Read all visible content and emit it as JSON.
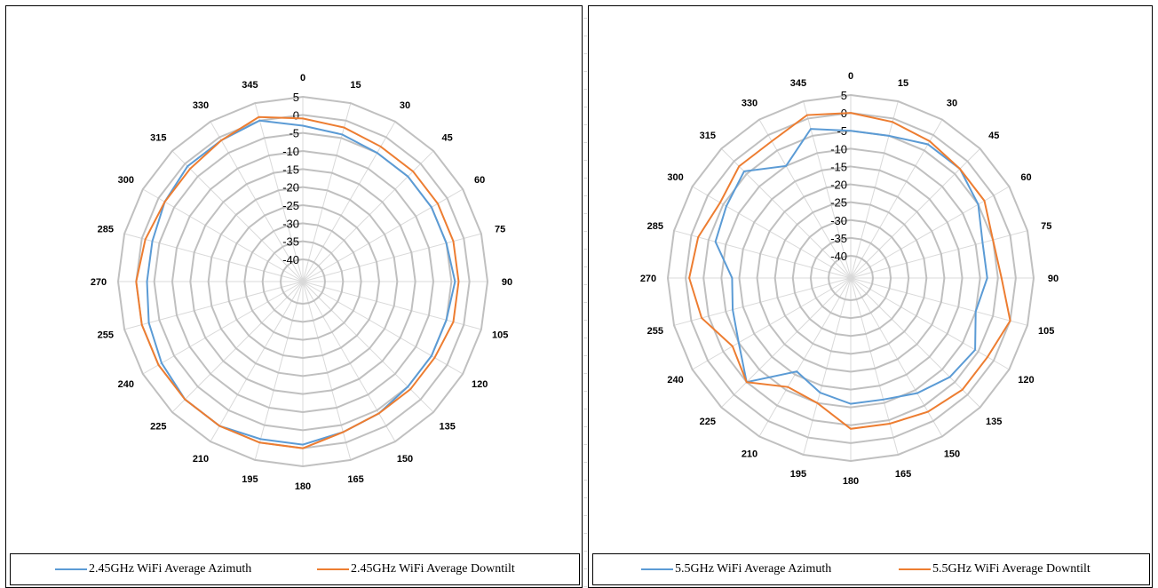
{
  "colors": {
    "azimuth": "#5b9bd5",
    "downtilt": "#ed7d31",
    "grid": "#c0c0c0"
  },
  "chart_data": [
    {
      "type": "radar",
      "angle_labels": [
        "0",
        "15",
        "30",
        "45",
        "60",
        "75",
        "90",
        "105",
        "120",
        "135",
        "150",
        "165",
        "180",
        "195",
        "210",
        "225",
        "240",
        "255",
        "270",
        "285",
        "300",
        "315",
        "330",
        "345"
      ],
      "radial_labels": [
        "5",
        "0",
        "-5",
        "-10",
        "-15",
        "-20",
        "-25",
        "-30",
        "-35",
        "-40"
      ],
      "rlim": [
        -40,
        5
      ],
      "grid": true,
      "legend_position": "bottom",
      "series": [
        {
          "name": "2.45GHz WiFi Average Azimuth",
          "color": "#5b9bd5",
          "values": [
            -3,
            -4,
            -5,
            -5,
            -5,
            -5,
            -4,
            -5,
            -5,
            -5,
            -4,
            -3,
            -1,
            -1,
            0,
            0,
            -1,
            -2,
            -3,
            -3,
            -2,
            -1,
            -1,
            0
          ]
        },
        {
          "name": "2.45GHz WiFi Average Downtilt",
          "color": "#ed7d31",
          "values": [
            -1,
            -2,
            -3,
            -3,
            -3,
            -3,
            -3,
            -3,
            -4,
            -4,
            -4,
            -3,
            0,
            0,
            0,
            0,
            0,
            0,
            0,
            -1,
            -2,
            -2,
            -1,
            1
          ]
        }
      ]
    },
    {
      "type": "radar",
      "angle_labels": [
        "0",
        "15",
        "30",
        "45",
        "60",
        "75",
        "90",
        "105",
        "120",
        "135",
        "150",
        "165",
        "180",
        "195",
        "210",
        "225",
        "240",
        "255",
        "270",
        "285",
        "300",
        "315",
        "330",
        "345"
      ],
      "radial_labels": [
        "5",
        "0",
        "-5",
        "-10",
        "-15",
        "-20",
        "-25",
        "-30",
        "-35",
        "-40"
      ],
      "rlim": [
        -40,
        5
      ],
      "grid": true,
      "legend_position": "bottom",
      "series": [
        {
          "name": "5.5GHz WiFi Average Azimuth",
          "color": "#5b9bd5",
          "values": [
            -5,
            -5,
            -3,
            -3,
            -5,
            -8,
            -8,
            -10,
            -6,
            -7,
            -9,
            -11,
            -11,
            -13,
            -16,
            -5,
            -10,
            -12,
            -13,
            -7,
            -6,
            -4,
            -10,
            -3
          ]
        },
        {
          "name": "5.5GHz WiFi Average Downtilt",
          "color": "#ed7d31",
          "values": [
            0,
            -1,
            -2,
            -3,
            -3,
            -5,
            -4,
            0,
            -2,
            -2,
            -3,
            -4,
            -4,
            -10,
            -11,
            -5,
            -8,
            -3,
            -1,
            -2,
            -4,
            -2,
            -2,
            1
          ]
        }
      ]
    }
  ]
}
